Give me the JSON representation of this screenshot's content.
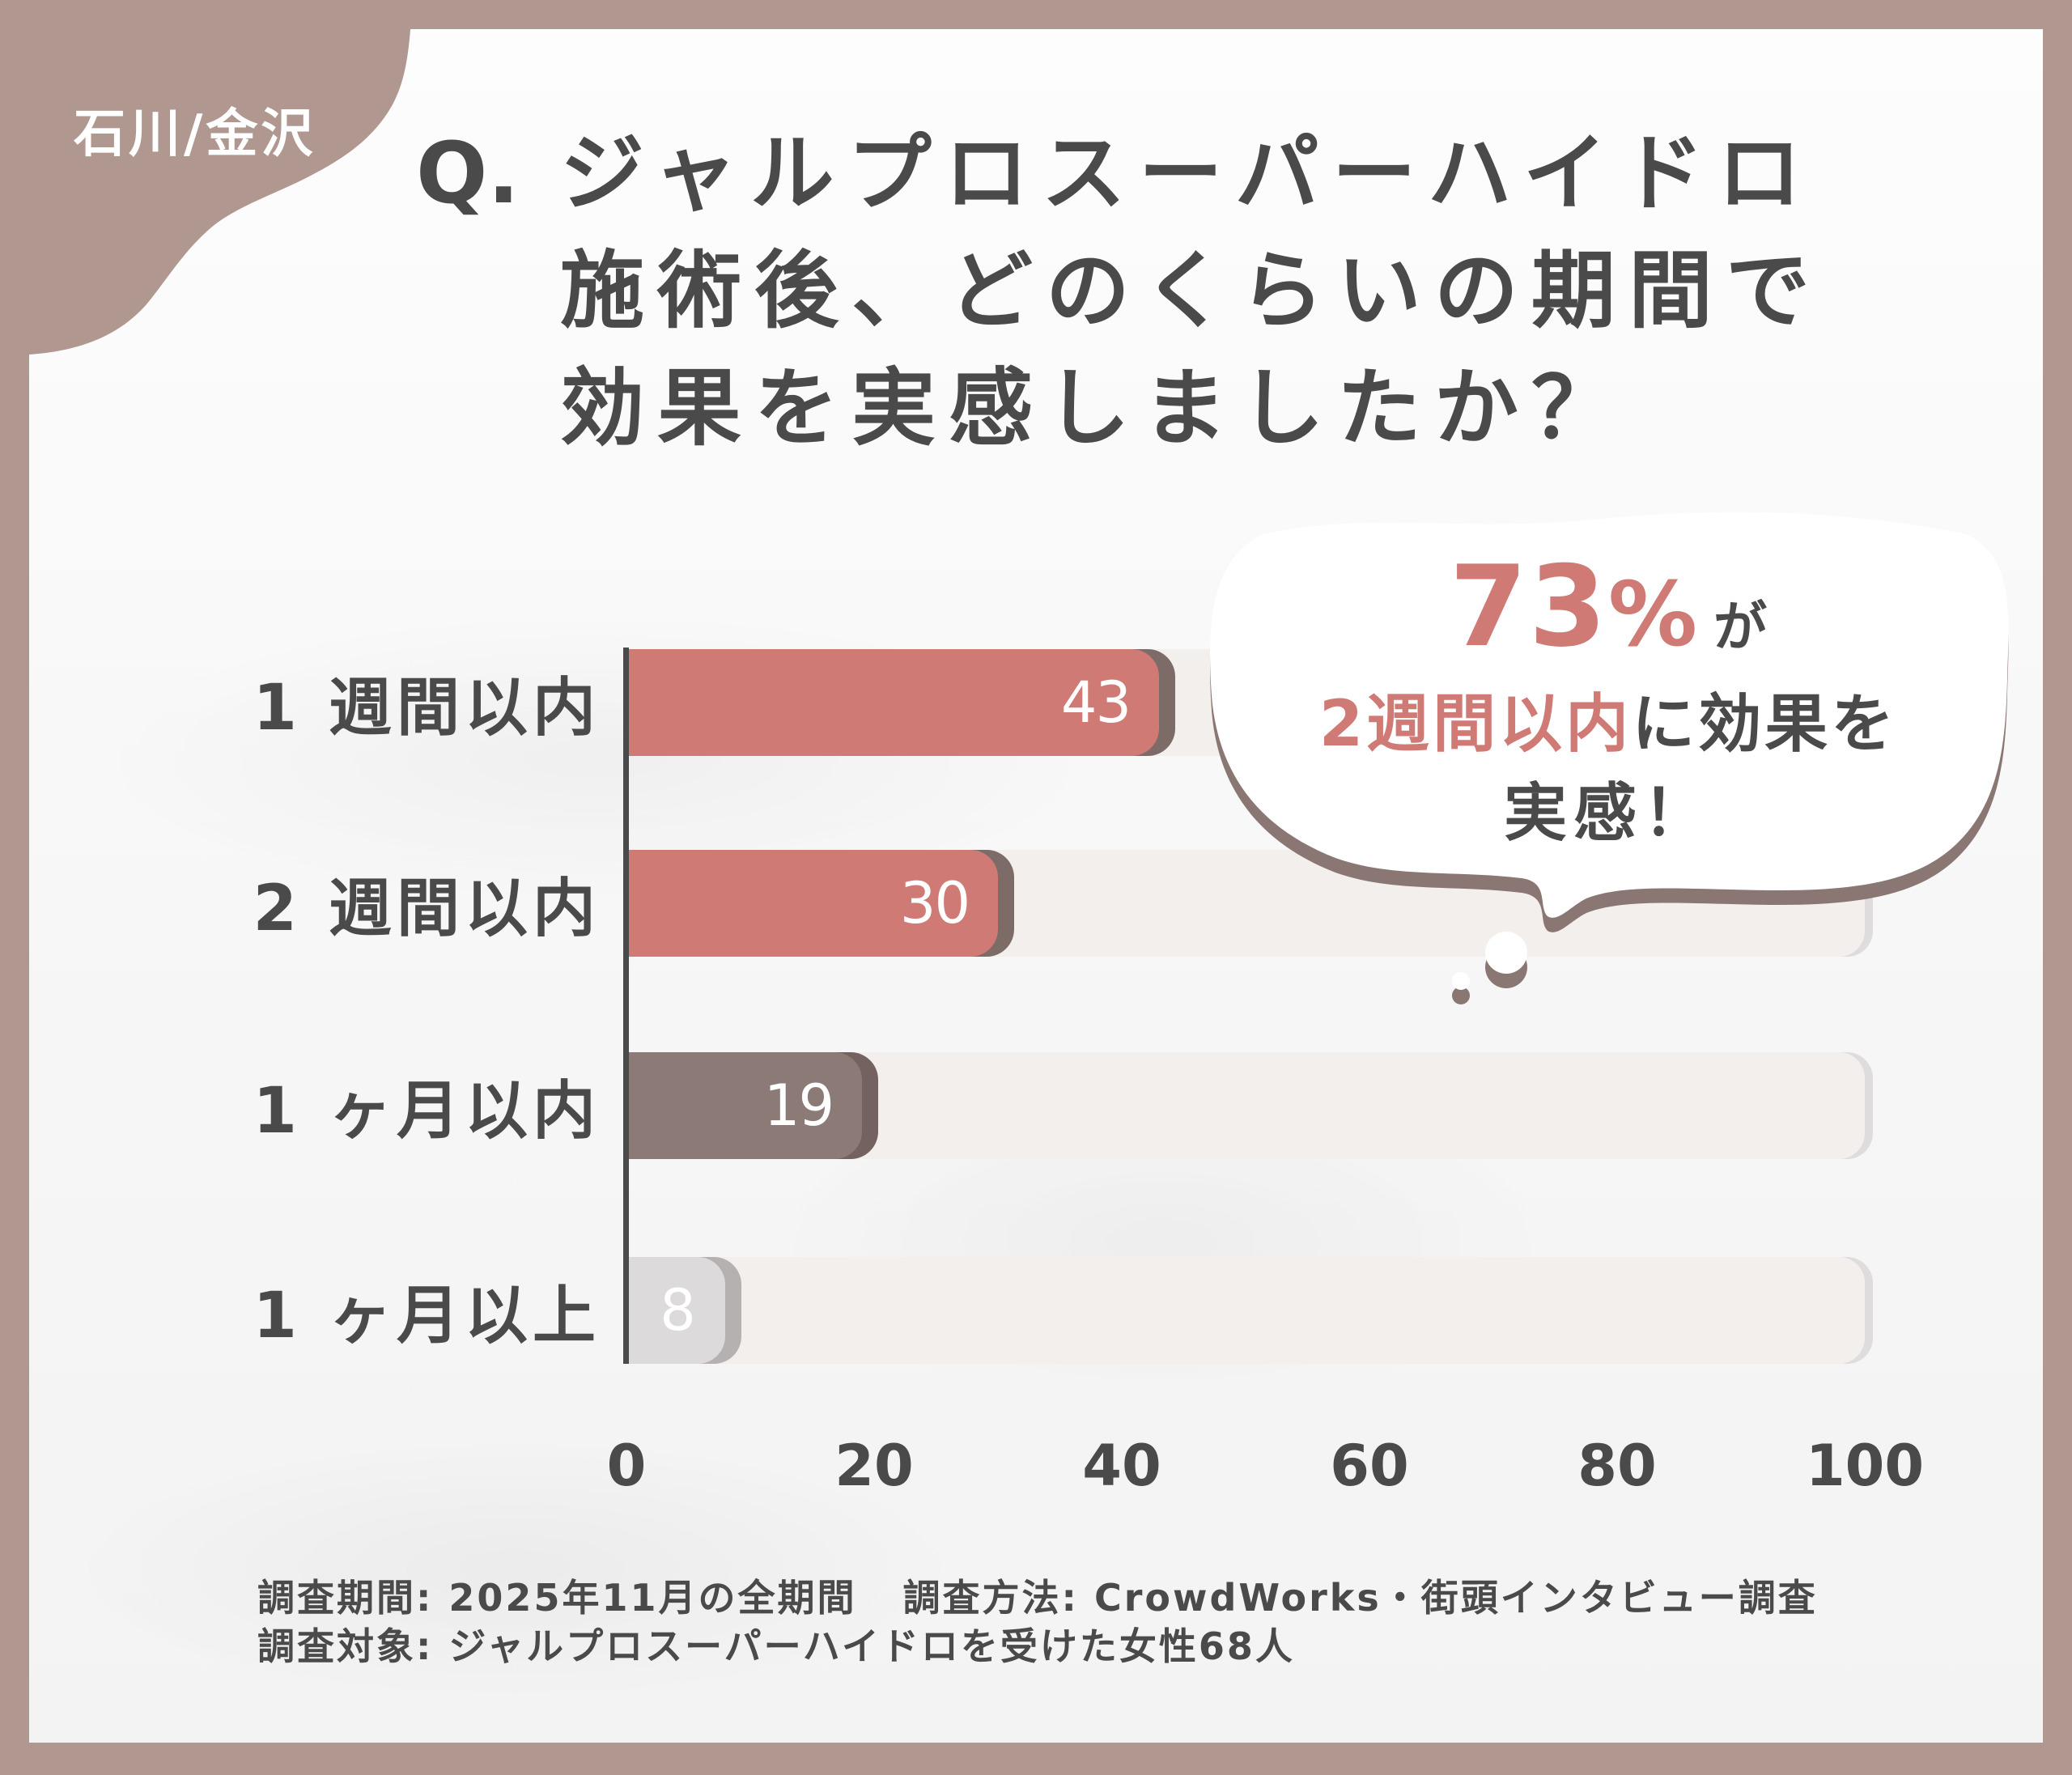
{
  "tag": {
    "label": "石川/金沢"
  },
  "title": {
    "prefix": "Q.",
    "lines": [
      "ジャルプロスーパーハイドロ",
      "施術後、どのくらいの期間で",
      "効果を実感しましたか？"
    ]
  },
  "callout": {
    "percent": "73",
    "percent_sign": "%",
    "particle": "が",
    "highlight": "2週間以内",
    "rest_line2": "に効果を",
    "line3": "実感！"
  },
  "footer": {
    "period_label": "調査期間:",
    "period_value": "2025年11月の全期間",
    "method_label": "調査方法:",
    "method_value": "CrowdWorks・街頭インタビュー調査",
    "target_label": "調査対象:",
    "target_value": "ジャルプロスーパーハイドロを受けた女性68人"
  },
  "colors": {
    "frame": "#b09890",
    "accent_pink": "#cf7a75",
    "bar_brown": "#8c7a77",
    "bar_gray": "#dcdadb",
    "text_dark": "#4a4a4a",
    "track": "#f3efed"
  },
  "chart_data": {
    "type": "bar",
    "orientation": "horizontal",
    "title": "Q. ジャルプロスーパーハイドロ施術後、どのくらいの期間で効果を実感しましたか？",
    "categories": [
      "1週間以内",
      "2週間以内",
      "1ヶ月以内",
      "1ヶ月以上"
    ],
    "category_labels": [
      "1 週間以内",
      "2 週間以内",
      "1 ヶ月以内",
      "1 ヶ月以上"
    ],
    "values": [
      43,
      30,
      19,
      8
    ],
    "bar_colors": [
      "#cf7a75",
      "#cf7a75",
      "#8c7a77",
      "#dcdadb"
    ],
    "bar_shadow_colors": [
      "#7d6b68",
      "#7d6b68",
      "#73625f",
      "#b5b1b0"
    ],
    "xlim": [
      0,
      100
    ],
    "xticks": [
      0,
      20,
      40,
      60,
      80,
      100
    ],
    "xlabel": "",
    "ylabel": "",
    "grid": false,
    "legend": null,
    "annotation": "73%が2週間以内に効果を実感！"
  }
}
